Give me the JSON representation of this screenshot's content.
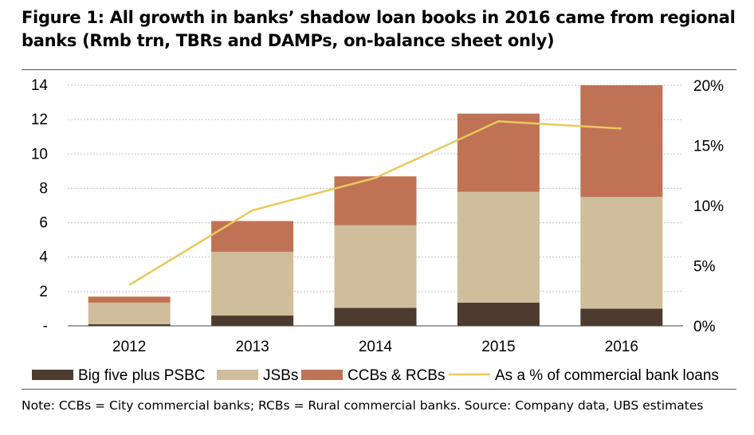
{
  "title": "Figure 1: All growth in banks’ shadow loan books in 2016 came from regional banks (Rmb trn, TBRs and DAMPs, on-balance sheet only)",
  "note": "Note: CCBs = City commercial banks; RCBs = Rural commercial banks. Source:  Company data, UBS estimates",
  "colors": {
    "big_five": "#4d3b2f",
    "jsbs": "#cfbd9b",
    "ccbs": "#c07255",
    "line": "#e8c95e"
  },
  "chart_data": {
    "type": "bar",
    "stacked": true,
    "categories": [
      "2012",
      "2013",
      "2014",
      "2015",
      "2016"
    ],
    "series": [
      {
        "name": "Big five plus PSBC",
        "values": [
          0.1,
          0.6,
          1.05,
          1.35,
          1.0
        ]
      },
      {
        "name": "JSBs",
        "values": [
          1.25,
          3.7,
          4.8,
          6.45,
          6.5
        ]
      },
      {
        "name": "CCBs & RCBs",
        "values": [
          0.35,
          1.8,
          2.85,
          4.55,
          6.5
        ]
      }
    ],
    "line_series": {
      "name": "As a % of commercial bank loans",
      "values": [
        3.4,
        9.6,
        12.3,
        17.0,
        16.4
      ],
      "axis": "right"
    },
    "ylim": [
      0,
      14
    ],
    "yticks": [
      "-",
      "2",
      "4",
      "6",
      "8",
      "10",
      "12",
      "14"
    ],
    "y2lim": [
      0,
      20
    ],
    "y2ticks": [
      "0%",
      "5%",
      "10%",
      "15%",
      "20%"
    ],
    "grid": true,
    "legend_position": "bottom"
  }
}
